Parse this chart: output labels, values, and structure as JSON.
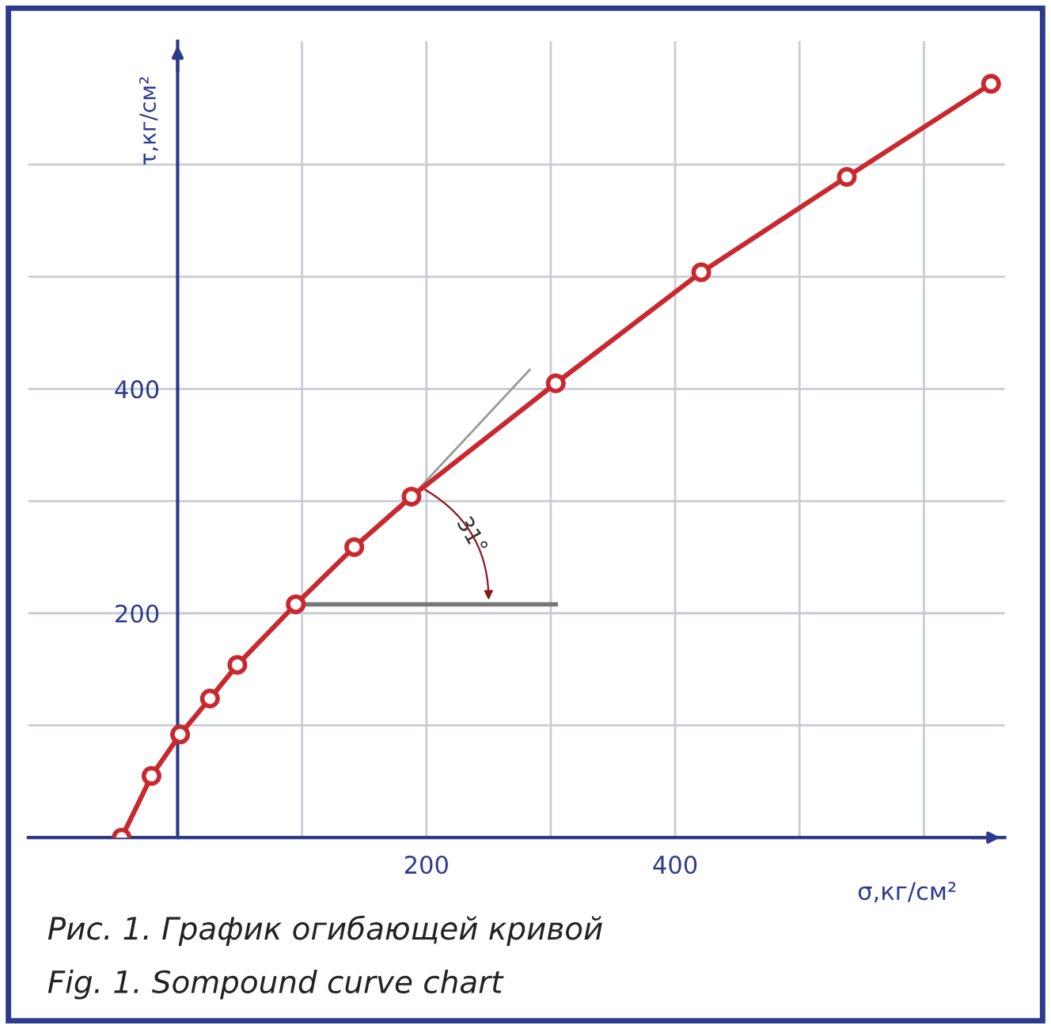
{
  "chart_data": {
    "type": "line",
    "xlabel": "σ,кг/см²",
    "ylabel": "τ,кг/см²",
    "x": [
      -45,
      -21,
      2,
      26,
      48,
      95,
      142,
      188,
      304,
      421,
      538,
      654
    ],
    "series": [
      {
        "color": "#c8282e",
        "values": [
          0,
          55,
          92,
          124,
          154,
          208,
          259,
          304,
          405,
          504,
          589,
          672
        ]
      }
    ],
    "marker": "circle",
    "line_style": "solid",
    "xlim": [
      -120,
      665
    ],
    "ylim": [
      0,
      710
    ],
    "xticks": [
      {
        "value": 100,
        "label": null
      },
      200,
      {
        "value": 300,
        "label": null
      },
      400,
      {
        "value": 500,
        "label": null
      },
      {
        "value": 600,
        "label": null
      }
    ],
    "yticks": [
      {
        "value": 100,
        "label": null
      },
      200,
      {
        "value": 300,
        "label": null
      },
      400,
      {
        "value": 500,
        "label": null
      },
      {
        "value": 600,
        "label": null
      }
    ],
    "grid": true,
    "annotations": [
      "31°",
      "Рис. 1. График огибающей кривой",
      "Fig. 1. Sompound curve chart"
    ]
  }
}
